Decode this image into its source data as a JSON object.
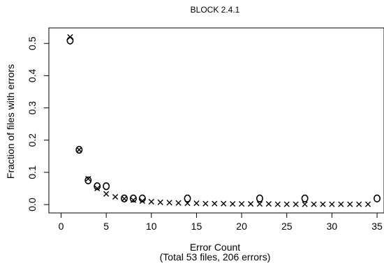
{
  "chart_data": {
    "type": "scatter",
    "title": "BLOCK 2.4.1",
    "xlabel": "Error Count",
    "xlabel_note": "(Total 53 files, 206 errors)",
    "ylabel": "Fraction of files with errors",
    "xlim": [
      0,
      35
    ],
    "ylim": [
      0,
      0.53
    ],
    "x_ticks": [
      "0",
      "5",
      "10",
      "15",
      "20",
      "25",
      "30",
      "35"
    ],
    "y_ticks": [
      "0.0",
      "0.1",
      "0.2",
      "0.3",
      "0.4",
      "0.5"
    ],
    "grid": false,
    "series": [
      {
        "marker": "o",
        "points": [
          [
            1,
            0.509
          ],
          [
            2,
            0.17
          ],
          [
            3,
            0.075
          ],
          [
            4,
            0.057
          ],
          [
            5,
            0.057
          ],
          [
            7,
            0.019
          ],
          [
            8,
            0.019
          ],
          [
            9,
            0.019
          ],
          [
            14,
            0.019
          ],
          [
            22,
            0.019
          ],
          [
            27,
            0.019
          ],
          [
            35,
            0.019
          ]
        ]
      },
      {
        "marker": "x",
        "points": [
          [
            1,
            0.52
          ],
          [
            2,
            0.17
          ],
          [
            3,
            0.08
          ],
          [
            4,
            0.05
          ],
          [
            5,
            0.033
          ],
          [
            6,
            0.024
          ],
          [
            7,
            0.018
          ],
          [
            8,
            0.014
          ],
          [
            9,
            0.011
          ],
          [
            10,
            0.009
          ],
          [
            11,
            0.007
          ],
          [
            12,
            0.006
          ],
          [
            13,
            0.005
          ],
          [
            14,
            0.004
          ],
          [
            15,
            0.004
          ],
          [
            16,
            0.003
          ],
          [
            17,
            0.003
          ],
          [
            18,
            0.003
          ],
          [
            19,
            0.002
          ],
          [
            20,
            0.002
          ],
          [
            21,
            0.002
          ],
          [
            22,
            0.002
          ],
          [
            23,
            0.002
          ],
          [
            24,
            0.001
          ],
          [
            25,
            0.001
          ],
          [
            26,
            0.001
          ],
          [
            27,
            0.001
          ],
          [
            28,
            0.001
          ],
          [
            29,
            0.001
          ],
          [
            30,
            0.001
          ],
          [
            31,
            0.001
          ],
          [
            32,
            0.001
          ],
          [
            33,
            0.001
          ],
          [
            34,
            0.001
          ]
        ]
      }
    ]
  }
}
